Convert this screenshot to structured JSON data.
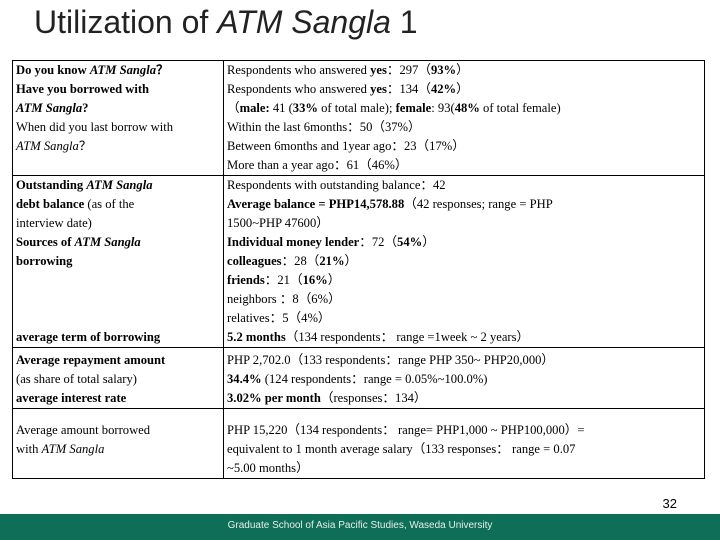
{
  "title": {
    "prefix": "Utilization of ",
    "name": "ATM Sangla",
    "suffix": " 1"
  },
  "rows": [
    {
      "left": [
        [
          {
            "t": "Do you know ",
            "b": true
          },
          {
            "t": "ATM Sangla",
            "b": true,
            "i": true
          },
          {
            "t": "？",
            "b": true
          }
        ],
        [
          {
            "t": "Have you borrowed with",
            "b": true
          }
        ],
        [
          {
            "t": "ATM Sangla",
            "b": true,
            "i": true
          },
          {
            "t": "?",
            "b": true
          }
        ],
        [
          {
            "t": "When did you last borrow with"
          }
        ],
        [
          {
            "t": "ATM Sangla",
            "i": true
          },
          {
            "t": "？"
          }
        ]
      ],
      "right": [
        [
          {
            "t": "Respondents who answered "
          },
          {
            "t": "yes",
            "b": true
          },
          {
            "t": "：297（"
          },
          {
            "t": "93%",
            "b": true
          },
          {
            "t": "）"
          }
        ],
        [
          {
            "t": "Respondents who answered "
          },
          {
            "t": "yes",
            "b": true
          },
          {
            "t": "：134（"
          },
          {
            "t": "42%",
            "b": true
          },
          {
            "t": "）"
          }
        ],
        [
          {
            "t": "（"
          },
          {
            "t": "male:",
            "b": true
          },
          {
            "t": " 41 ("
          },
          {
            "t": "33%",
            "b": true
          },
          {
            "t": " of total male); "
          },
          {
            "t": "female",
            "b": true
          },
          {
            "t": ": 93("
          },
          {
            "t": "48%",
            "b": true
          },
          {
            "t": " of total female)"
          }
        ],
        [
          {
            "t": "Within the last 6months：50（37%）"
          }
        ],
        [
          {
            "t": "Between 6months and 1year ago：23（17%）"
          }
        ],
        [
          {
            "t": "More than a year ago：61（46%）"
          }
        ]
      ]
    },
    {
      "left": [
        [
          {
            "t": "Outstanding ",
            "b": true
          },
          {
            "t": "ATM Sangla",
            "b": true,
            "i": true
          }
        ],
        [
          {
            "t": "debt balance",
            "b": true
          },
          {
            "t": " (as of the"
          }
        ],
        [
          {
            "t": "interview date)"
          }
        ],
        [
          {
            "t": "Sources of ",
            "b": true
          },
          {
            "t": "ATM Sangla",
            "b": true,
            "i": true
          }
        ],
        [
          {
            "t": "borrowing",
            "b": true
          }
        ],
        [],
        [],
        [],
        [
          {
            "t": "average term of borrowing",
            "b": true
          }
        ]
      ],
      "right": [
        [
          {
            "t": "Respondents with outstanding balance：42"
          }
        ],
        [
          {
            "t": "Average balance = PHP14,578.88",
            "b": true
          },
          {
            "t": "（42 responses; range = PHP"
          }
        ],
        [
          {
            "t": "1500~PHP 47600）"
          }
        ],
        [
          {
            "t": "Individual money lender",
            "b": true
          },
          {
            "t": "：72（"
          },
          {
            "t": "54%",
            "b": true
          },
          {
            "t": "）"
          }
        ],
        [
          {
            "t": "colleagues",
            "b": true
          },
          {
            "t": "：28（"
          },
          {
            "t": "21%",
            "b": true
          },
          {
            "t": "）"
          }
        ],
        [
          {
            "t": "friends",
            "b": true
          },
          {
            "t": "：21（"
          },
          {
            "t": "16%",
            "b": true
          },
          {
            "t": "）"
          }
        ],
        [
          {
            "t": "neighbors ：8（6%）"
          }
        ],
        [
          {
            "t": "relatives：5（4%）"
          }
        ],
        [
          {
            "t": "5.2 months",
            "b": true
          },
          {
            "t": "（134 respondents： range =1week ~ 2 years）"
          }
        ]
      ]
    },
    {
      "left": [
        [
          {
            "t": "Average repayment amount",
            "b": true
          }
        ],
        [
          {
            "t": "(as share of total salary)"
          }
        ],
        [
          {
            "t": "average interest rate",
            "b": true
          }
        ]
      ],
      "right": [
        [
          {
            "t": "PHP 2,702.0（133 respondents：range PHP 350~ PHP20,000）"
          }
        ],
        [
          {
            "t": "34.4%",
            "b": true
          },
          {
            "t": " (124 respondents：range = 0.05%~100.0%)"
          }
        ],
        [
          {
            "t": "3.02% per month",
            "b": true
          },
          {
            "t": "（responses：134）"
          }
        ]
      ]
    },
    {
      "left": [
        [
          {
            "t": "Average amount borrowed"
          }
        ],
        [
          {
            "t": "with "
          },
          {
            "t": "ATM Sangla",
            "i": true
          }
        ]
      ],
      "right": [
        [
          {
            "t": "PHP 15,220（134 respondents： range= PHP1,000 ~ PHP100,000）="
          }
        ],
        [
          {
            "t": "equivalent to 1 month average salary（133 responses： range = 0.07"
          }
        ],
        [
          {
            "t": "~5.00 months）"
          }
        ]
      ]
    }
  ],
  "page_number": "32",
  "footer_text": "Graduate School of Asia Pacific Studies, Waseda University"
}
